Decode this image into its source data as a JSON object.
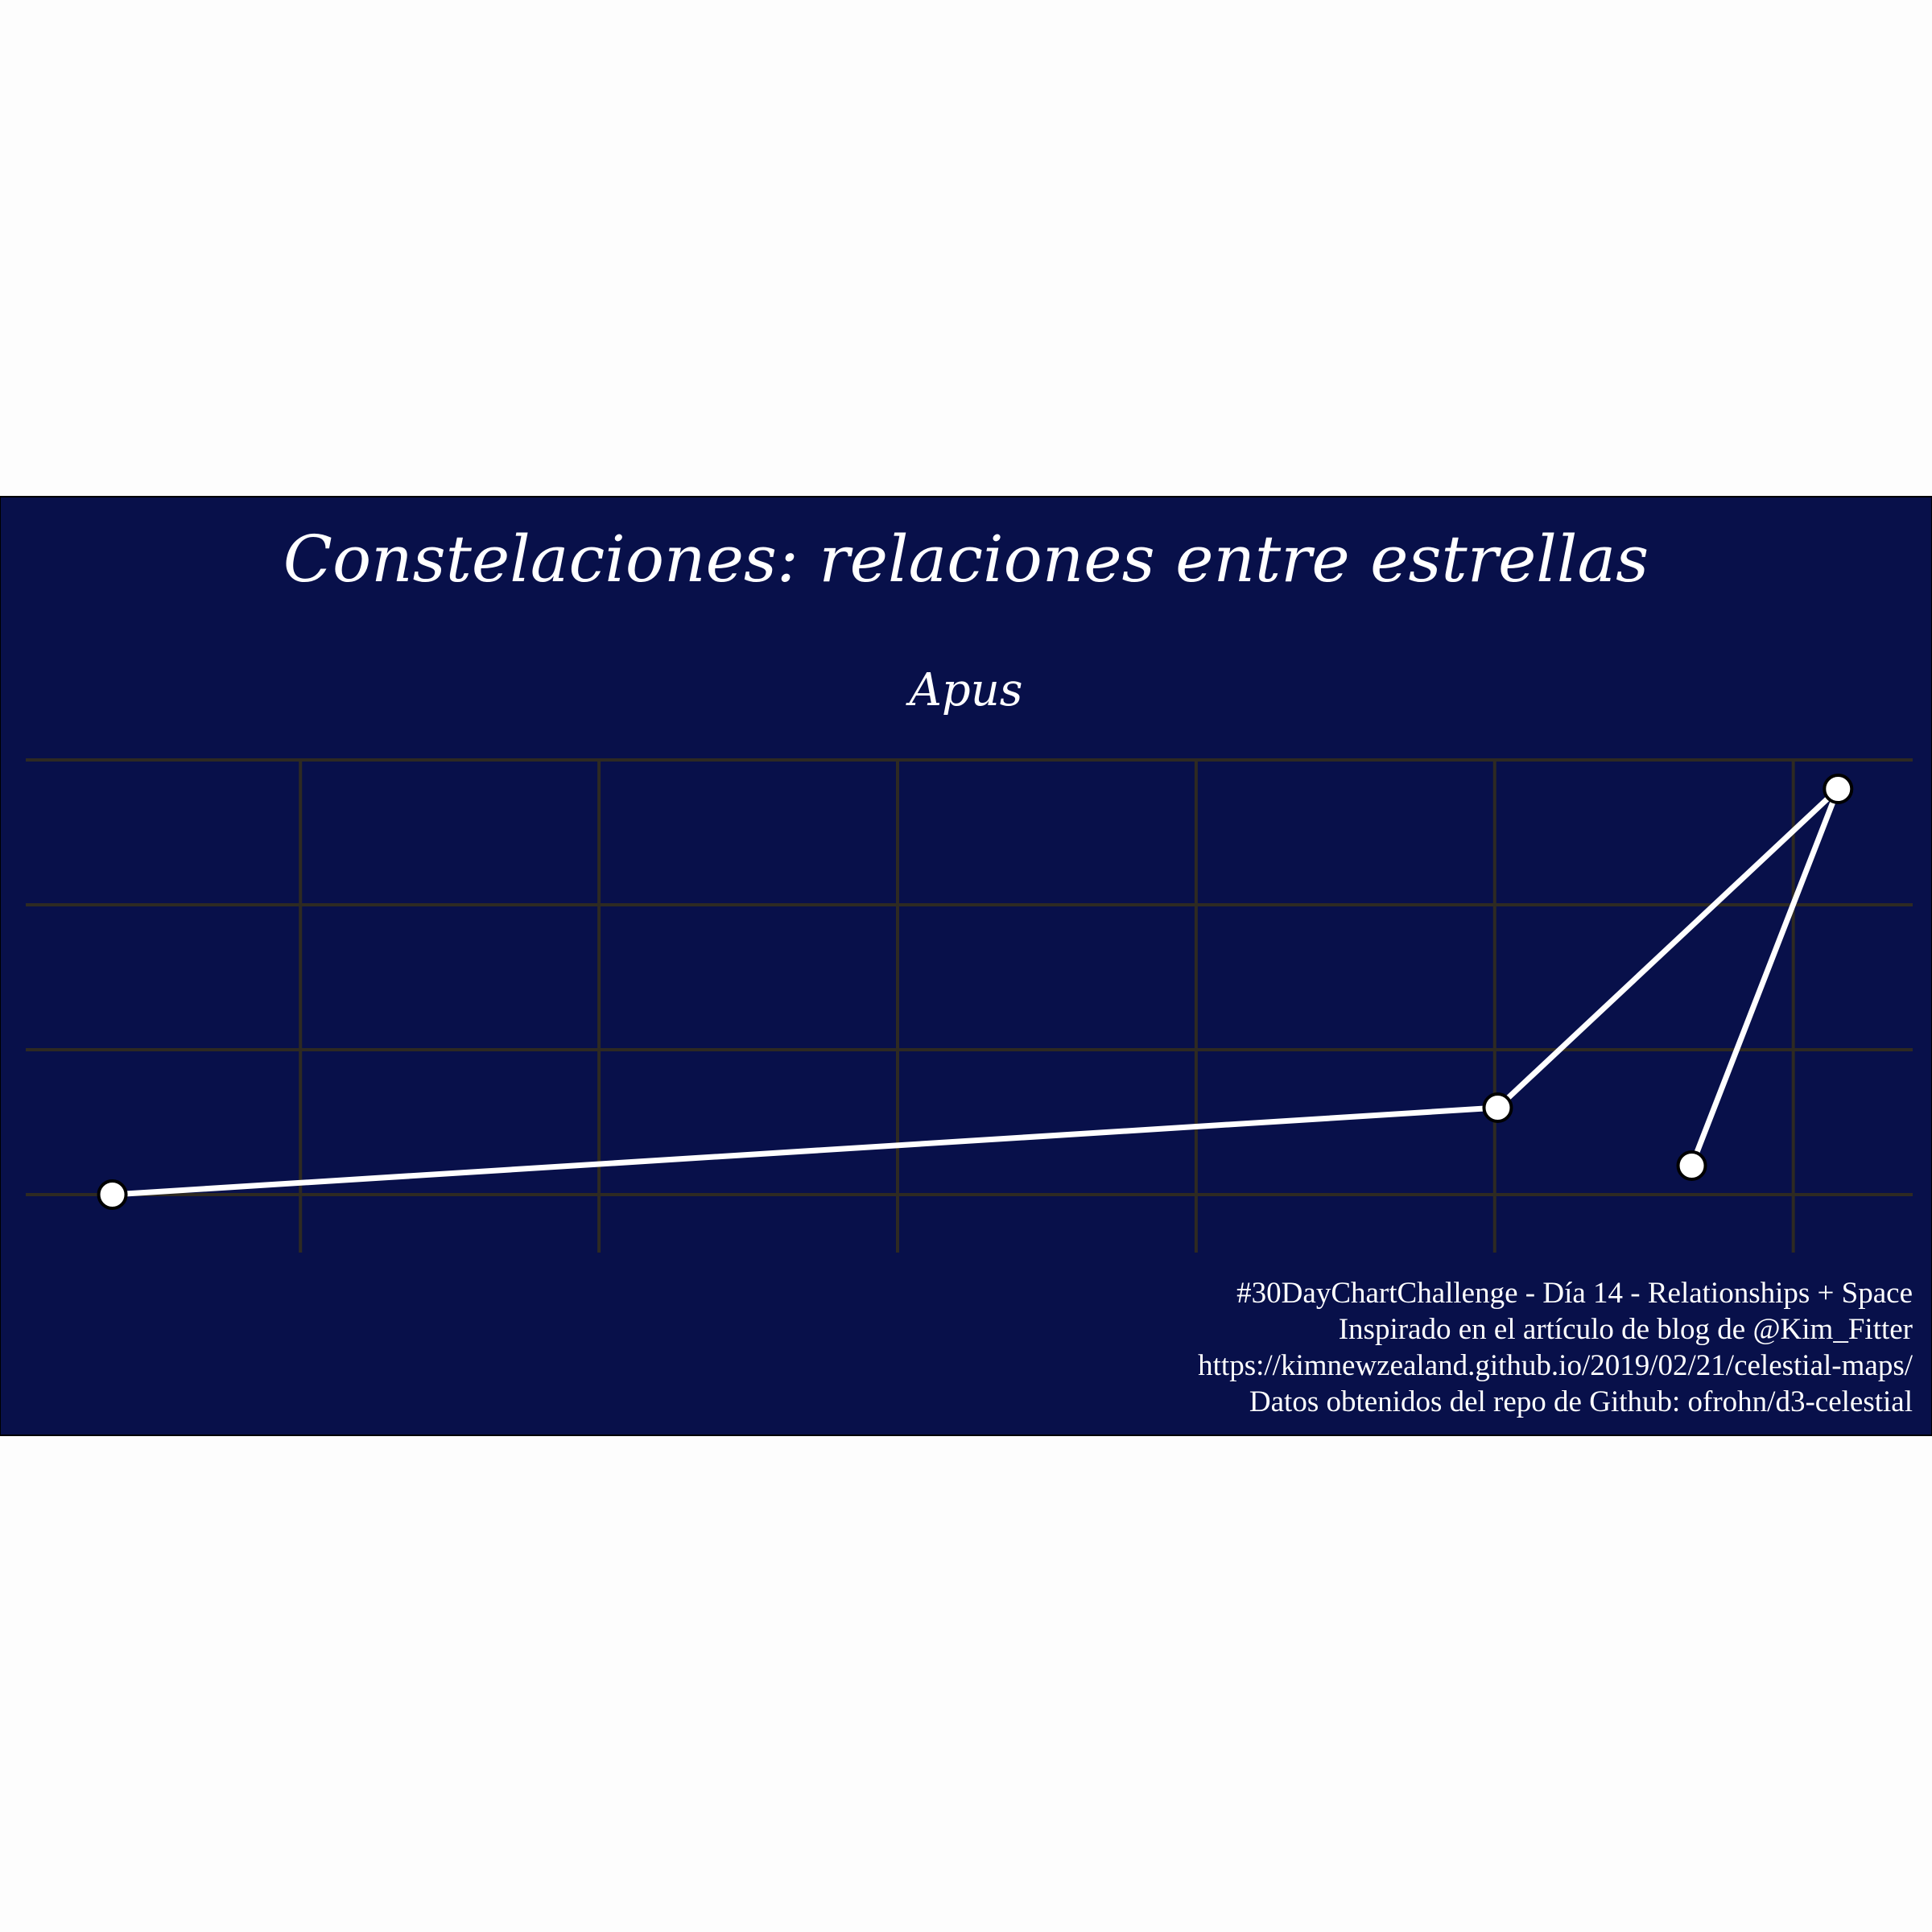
{
  "colors": {
    "panel_background": "#08104a",
    "page_background": "#fdfdfd",
    "grid": "#2e2a22",
    "line": "#ffffff",
    "star_fill": "#ffffff",
    "star_outline": "#000000"
  },
  "chart_data": {
    "type": "line",
    "title": "Constelaciones: relaciones entre estrellas",
    "subtitle": "Apus",
    "xlabel": "",
    "ylabel": "",
    "grid": true,
    "axis_ticks_labeled": false,
    "stars": [
      {
        "x": -71.3,
        "y": -79.0
      },
      {
        "x": -24.9,
        "y": -78.7
      },
      {
        "x": -13.5,
        "y": -77.6
      },
      {
        "x": -18.4,
        "y": -78.9
      }
    ],
    "segments": [
      [
        0,
        1
      ],
      [
        1,
        2
      ],
      [
        2,
        3
      ]
    ],
    "xlim": [
      -74.2,
      -11.0
    ],
    "ylim": [
      -79.2,
      -77.5
    ],
    "x_gridlines": [
      -65,
      -55,
      -45,
      -35,
      -25,
      -15
    ],
    "y_gridlines": [
      -79,
      -78.5,
      -78,
      -77.5
    ]
  },
  "caption": {
    "line1": "#30DayChartChallenge - Día 14 - Relationships + Space",
    "line2": "Inspirado en el artículo de blog de @Kim_Fitter",
    "line3": "https://kimnewzealand.github.io/2019/02/21/celestial-maps/",
    "line4": "Datos obtenidos del repo de Github: ofrohn/d3-celestial"
  }
}
